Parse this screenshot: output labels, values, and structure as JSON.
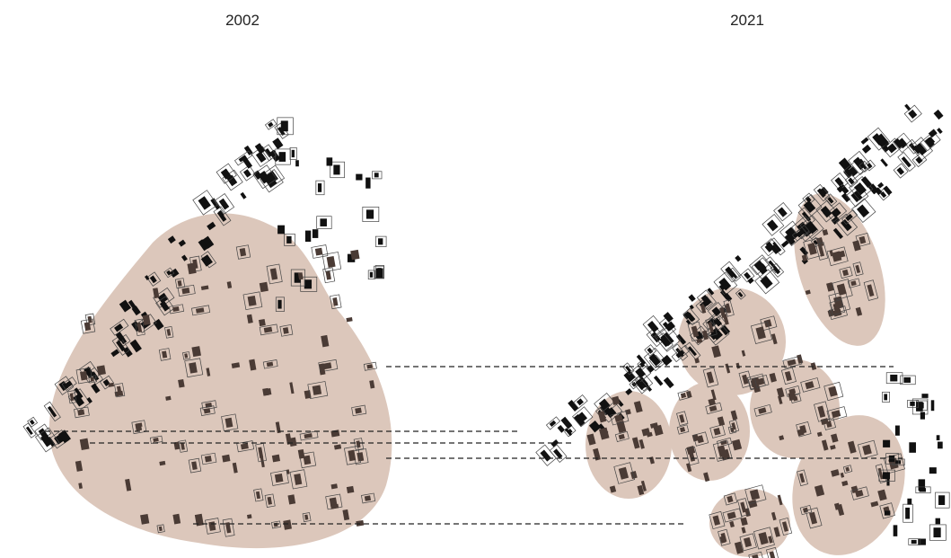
{
  "panels": [
    {
      "title": "2002"
    },
    {
      "title": "2021"
    }
  ]
}
